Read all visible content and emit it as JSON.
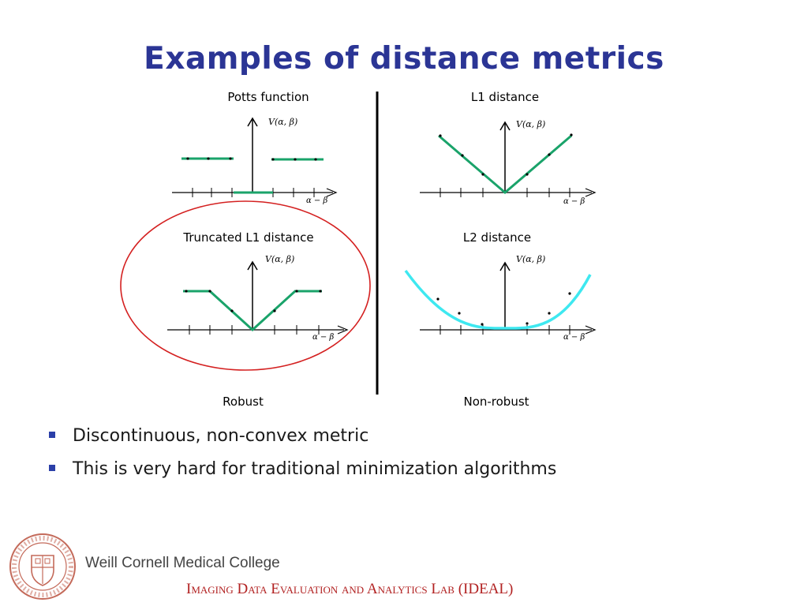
{
  "slide": {
    "title": "Examples of distance metrics"
  },
  "figure": {
    "panels": [
      {
        "title": "Potts function",
        "function_label": "V(α, β)",
        "axis_label": "α − β"
      },
      {
        "title": "L1 distance",
        "function_label": "V(α, β)",
        "axis_label": "α − β"
      },
      {
        "title": "Truncated L1 distance",
        "function_label": "V(α, β)",
        "axis_label": "α − β"
      },
      {
        "title": "L2 distance",
        "function_label": "V(α, β)",
        "axis_label": "α − β"
      }
    ],
    "column_labels": [
      "Robust",
      "Non-robust"
    ],
    "curve_colors": {
      "green": "#1aa36a",
      "cyan": "#3ee8f0"
    },
    "highlight_color": "#d42020"
  },
  "bullets": [
    "Discontinuous, non-convex metric",
    "This is very hard for traditional minimization algorithms"
  ],
  "footer": {
    "college": "Weill Cornell Medical College",
    "lab": "Imaging Data Evaluation and Analytics Lab (IDEAL)",
    "seal_icon": "college-seal-icon"
  }
}
